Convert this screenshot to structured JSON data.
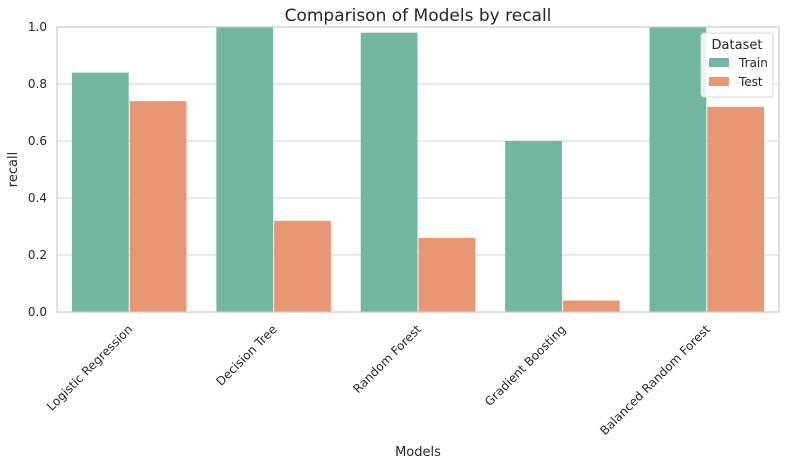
{
  "chart_data": {
    "type": "bar",
    "title": "Comparison of Models by recall",
    "xlabel": "Models",
    "ylabel": "recall",
    "ylim": [
      0,
      1.0
    ],
    "yticks": [
      "0.0",
      "0.2",
      "0.4",
      "0.6",
      "0.8",
      "1.0"
    ],
    "categories": [
      "Logistic Regression",
      "Decision Tree",
      "Random Forest",
      "Gradient Boosting",
      "Balanced Random Forest"
    ],
    "series": [
      {
        "name": "Train",
        "color": "#72b6a1",
        "values": [
          0.84,
          1.0,
          0.98,
          0.6,
          1.0
        ]
      },
      {
        "name": "Test",
        "color": "#e99675",
        "values": [
          0.74,
          0.32,
          0.26,
          0.04,
          0.72
        ]
      }
    ],
    "legend": {
      "title": "Dataset",
      "position": "top-right"
    },
    "grid": {
      "horizontal": true,
      "vertical": false
    }
  }
}
